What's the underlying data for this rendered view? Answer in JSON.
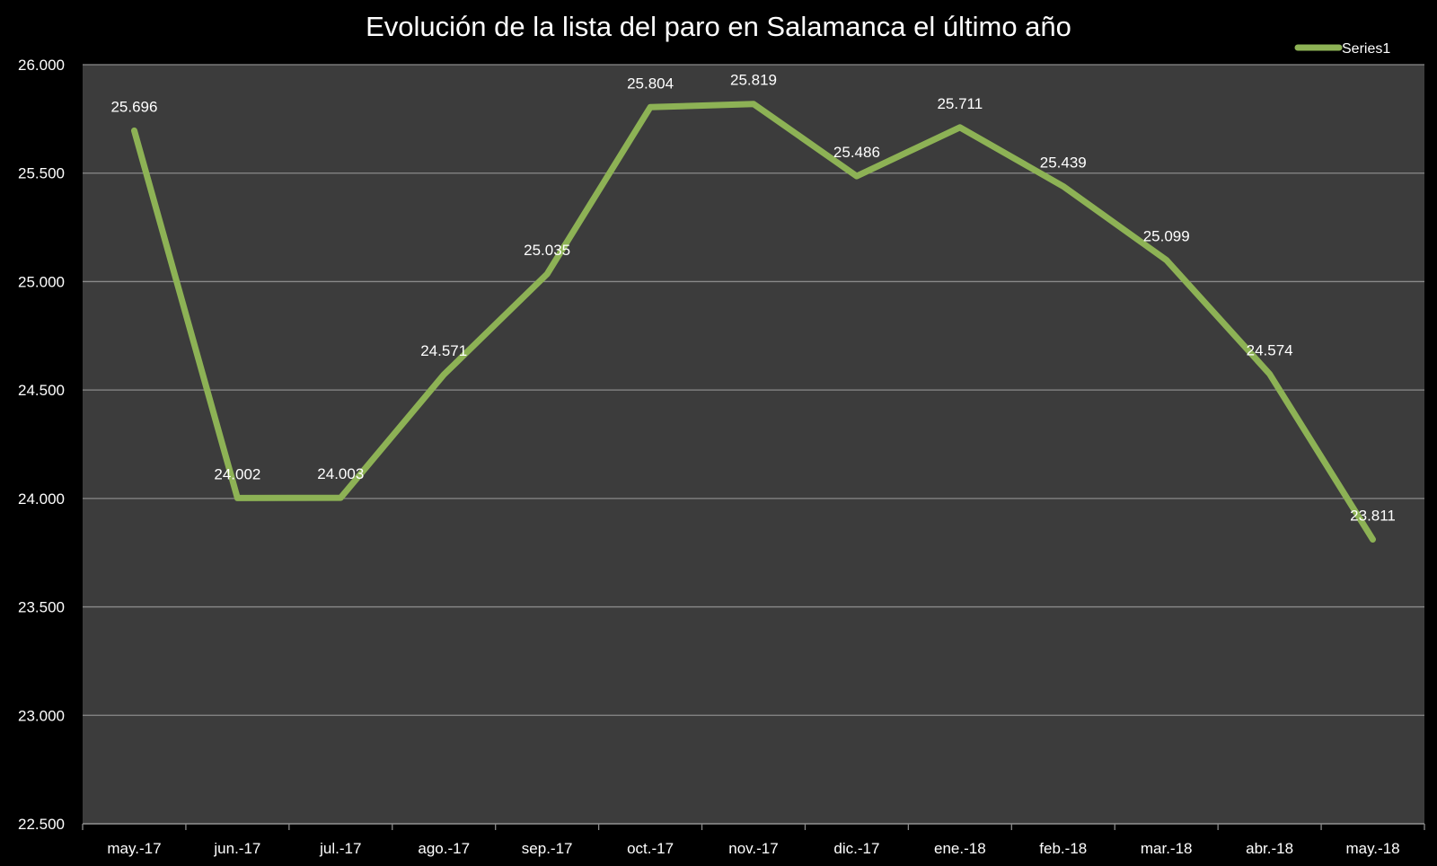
{
  "chart_data": {
    "type": "line",
    "title": "Evolución de la lista del paro en Salamanca el último año",
    "categories": [
      "may.-17",
      "jun.-17",
      "jul.-17",
      "ago.-17",
      "sep.-17",
      "oct.-17",
      "nov.-17",
      "dic.-17",
      "ene.-18",
      "feb.-18",
      "mar.-18",
      "abr.-18",
      "may.-18"
    ],
    "series": [
      {
        "name": "Series1",
        "values": [
          25696,
          24002,
          24003,
          24571,
          25035,
          25804,
          25819,
          25486,
          25711,
          25439,
          25099,
          24574,
          23811
        ],
        "labels": [
          "25.696",
          "24.002",
          "24.003",
          "24.571",
          "25.035",
          "25.804",
          "25.819",
          "25.486",
          "25.711",
          "25.439",
          "25.099",
          "24.574",
          "23.811"
        ]
      }
    ],
    "ylim": [
      22500,
      26000
    ],
    "yticks": [
      22500,
      23000,
      23500,
      24000,
      24500,
      25000,
      25500,
      26000
    ],
    "ytick_labels": [
      "22.500",
      "23.000",
      "23.500",
      "24.000",
      "24.500",
      "25.000",
      "25.500",
      "26.000"
    ],
    "xlabel": "",
    "ylabel": "",
    "grid": true,
    "legend_position": "top-right",
    "colors": {
      "line": "#8db255",
      "plot_background": "#3c3c3c",
      "page_background": "#000000",
      "gridline": "#8a8a8a",
      "text": "#ffffff"
    }
  }
}
